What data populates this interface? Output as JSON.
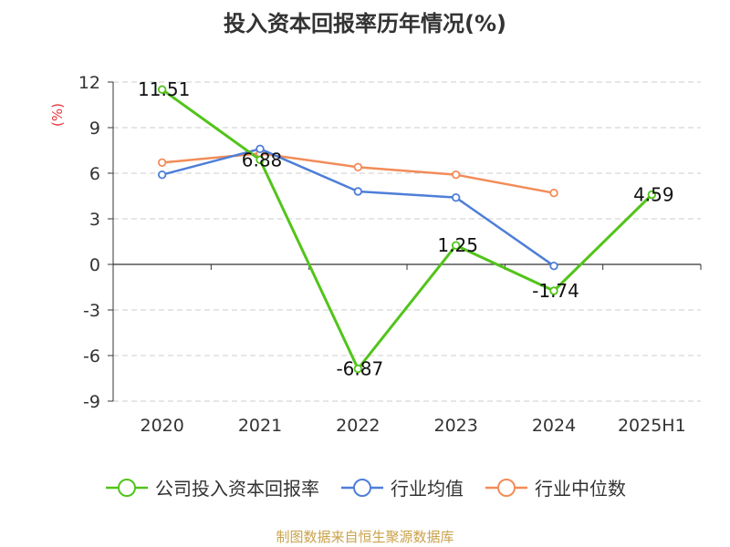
{
  "chart_data": {
    "type": "line",
    "title": "投入资本回报率历年情况(%)",
    "ylabel": "(%)",
    "xlabel": "",
    "categories": [
      "2020",
      "2021",
      "2022",
      "2023",
      "2024",
      "2025H1"
    ],
    "ylim": [
      -9,
      12
    ],
    "yticks": [
      12,
      9,
      6,
      3,
      0,
      -3,
      -6,
      -9
    ],
    "grid": true,
    "legend_position": "bottom",
    "series": [
      {
        "name": "公司投入资本回报率",
        "color": "#52c41a",
        "values": [
          11.51,
          6.88,
          -6.87,
          1.25,
          -1.74,
          4.59
        ],
        "labels": [
          "11.51",
          "6.88",
          "-6.87",
          "1.25",
          "-1.74",
          "4.59"
        ]
      },
      {
        "name": "行业均值",
        "color": "#4e7ed8",
        "values": [
          5.9,
          7.6,
          4.8,
          4.4,
          -0.1,
          null
        ]
      },
      {
        "name": "行业中位数",
        "color": "#f28c58",
        "values": [
          6.7,
          7.3,
          6.4,
          5.9,
          4.7,
          null
        ]
      }
    ]
  },
  "source_note": "制图数据来自恒生聚源数据库",
  "colors": {
    "ylabel": "#e8343c",
    "source_note": "#c9a24a",
    "grid": "#cccccc",
    "axis": "#333333"
  }
}
